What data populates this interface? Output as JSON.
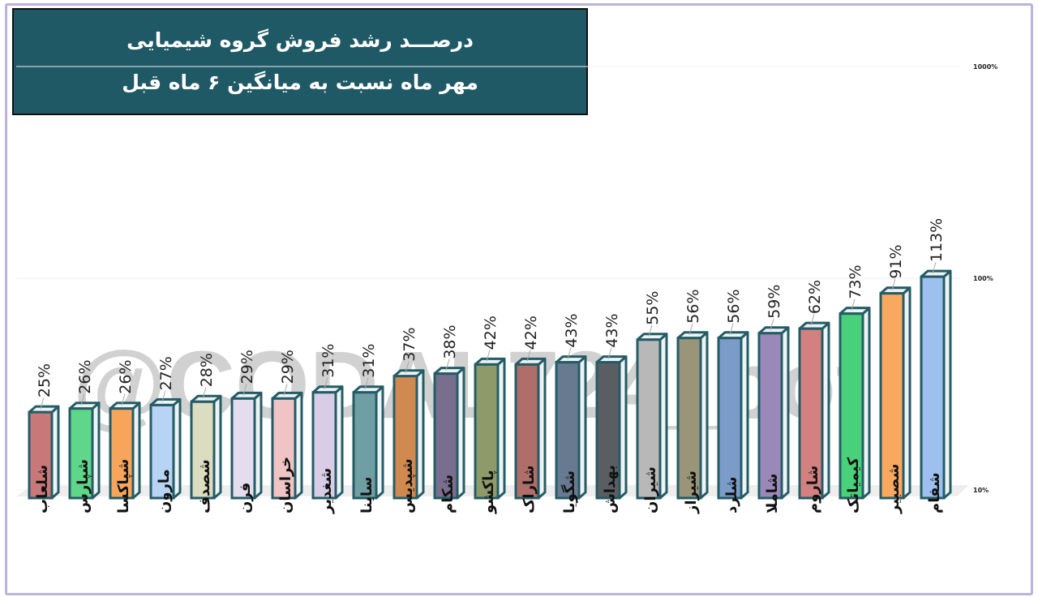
{
  "title_lines": [
    "درصـــد رشد فروش گروه  شیمیایی",
    "مهر ماه نسبت به میانگین ۶ ماه قبل"
  ],
  "watermark": "@CODAL724_bot",
  "chart_data": {
    "type": "bar",
    "title": "درصـــد رشد فروش گروه  شیمیایی - مهر ماه نسبت به میانگین ۶ ماه قبل",
    "y_scale": "log",
    "ylim": [
      10,
      1000
    ],
    "y_ticks": [
      10,
      100,
      1000
    ],
    "y_tick_labels": [
      "10%",
      "100%",
      "1000%"
    ],
    "y_axis_position": "right",
    "grid": true,
    "categories": [
      "شلعاب",
      "شپارس",
      "شپاکسا",
      "مارون",
      "شصدف",
      "فرن",
      "خراسان",
      "شغدیر",
      "ساینا",
      "شپدیس",
      "شکام",
      "پاکشو",
      "شاراک",
      "شگویا",
      "بهداش",
      "شیران",
      "شیراز",
      "شلرد",
      "شاملا",
      "شاروم",
      "کیمیاتک",
      "شصبیر",
      "شفام"
    ],
    "values": [
      25,
      26,
      26,
      27,
      28,
      29,
      29,
      31,
      31,
      37,
      38,
      42,
      42,
      43,
      43,
      55,
      56,
      56,
      59,
      62,
      73,
      91,
      113
    ],
    "data_labels": [
      "25%",
      "26%",
      "26%",
      "27%",
      "28%",
      "29%",
      "29%",
      "31%",
      "31%",
      "37%",
      "38%",
      "42%",
      "42%",
      "43%",
      "43%",
      "55%",
      "56%",
      "56%",
      "59%",
      "62%",
      "73%",
      "91%",
      "113%"
    ],
    "colors": [
      "#c87878",
      "#5fd68a",
      "#f7a55a",
      "#b8d4f5",
      "#dcdcc0",
      "#e6dcf0",
      "#f0c4c4",
      "#d8cce6",
      "#6f9ea4",
      "#d08a50",
      "#7a6e8e",
      "#8f9a6a",
      "#b06e6a",
      "#687a90",
      "#5a5e62",
      "#b8b8b8",
      "#9a9478",
      "#7b9cc8",
      "#9a88b8",
      "#d28080",
      "#48d07a",
      "#f9a860",
      "#9dc0ee"
    ],
    "bar_outline_color": "#245c66"
  }
}
